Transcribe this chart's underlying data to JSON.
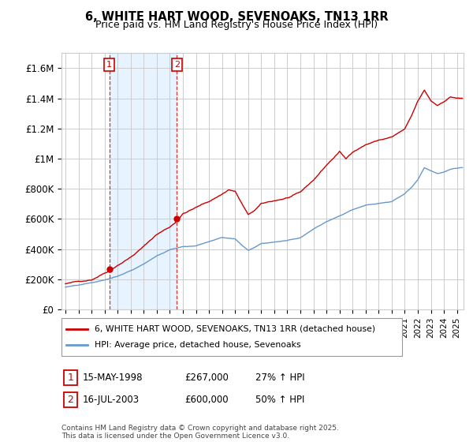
{
  "title": "6, WHITE HART WOOD, SEVENOAKS, TN13 1RR",
  "subtitle": "Price paid vs. HM Land Registry's House Price Index (HPI)",
  "ylabel_ticks": [
    "£0",
    "£200K",
    "£400K",
    "£600K",
    "£800K",
    "£1M",
    "£1.2M",
    "£1.4M",
    "£1.6M"
  ],
  "ytick_values": [
    0,
    200000,
    400000,
    600000,
    800000,
    1000000,
    1200000,
    1400000,
    1600000
  ],
  "ylim": [
    0,
    1700000
  ],
  "xlim_start": 1994.7,
  "xlim_end": 2025.5,
  "sale1_year": 1998.37,
  "sale1_price": 267000,
  "sale1_label": "1",
  "sale1_date": "15-MAY-1998",
  "sale1_pct": "27% ↑ HPI",
  "sale2_year": 2003.54,
  "sale2_price": 600000,
  "sale2_label": "2",
  "sale2_date": "16-JUL-2003",
  "sale2_pct": "50% ↑ HPI",
  "property_color": "#cc0000",
  "hpi_color": "#6699cc",
  "shade_color": "#ddeeff",
  "legend_property": "6, WHITE HART WOOD, SEVENOAKS, TN13 1RR (detached house)",
  "legend_hpi": "HPI: Average price, detached house, Sevenoaks",
  "sale1_date_disp": "15-MAY-1998",
  "sale2_date_disp": "16-JUL-2003",
  "footnote": "Contains HM Land Registry data © Crown copyright and database right 2025.\nThis data is licensed under the Open Government Licence v3.0.",
  "background_color": "#ffffff",
  "grid_color": "#cccccc"
}
